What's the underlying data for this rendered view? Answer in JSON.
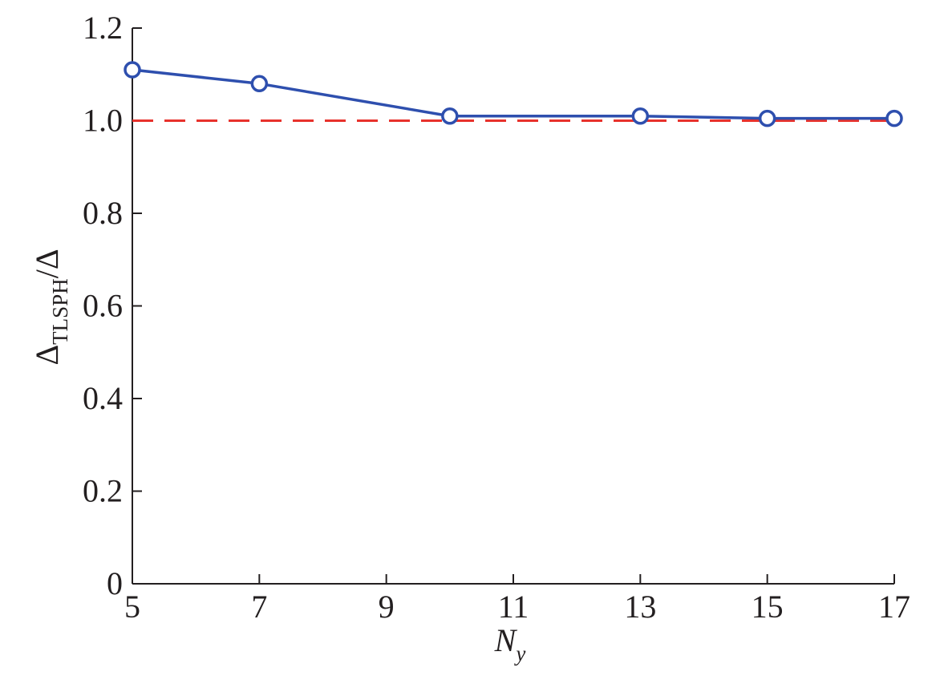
{
  "chart_data": {
    "type": "line",
    "title": "",
    "xlabel": {
      "main": "N",
      "sub": "y"
    },
    "ylabel": {
      "main": "Δ",
      "sub": "TLSPH",
      "suffix": "/Δ"
    },
    "xlim": [
      5,
      17
    ],
    "ylim": [
      0,
      1.2
    ],
    "x_ticks": [
      5,
      7,
      9,
      11,
      13,
      15,
      17
    ],
    "x_tick_labels": [
      "5",
      "7",
      "9",
      "11",
      "13",
      "15",
      "17"
    ],
    "y_ticks": [
      0,
      0.2,
      0.4,
      0.6,
      0.8,
      1.0,
      1.2
    ],
    "y_tick_labels": [
      "0",
      "0.2",
      "0.4",
      "0.6",
      "0.8",
      "1.0",
      "1.2"
    ],
    "grid": false,
    "series": [
      {
        "style": "solid-line-with-circle-markers",
        "color": "#2e4fae",
        "x": [
          5,
          7,
          10,
          13,
          15,
          17
        ],
        "y": [
          1.11,
          1.08,
          1.01,
          1.01,
          1.005,
          1.005
        ]
      },
      {
        "style": "dashed-reference-line",
        "color": "#e8322c",
        "x": [
          5,
          17
        ],
        "y": [
          1.0,
          1.0
        ]
      }
    ]
  }
}
